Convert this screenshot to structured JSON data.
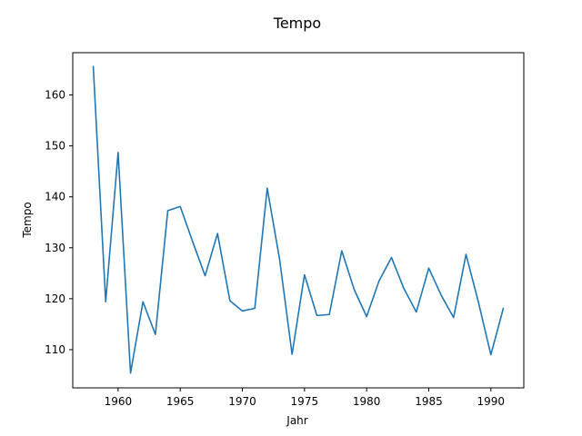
{
  "chart_data": {
    "type": "line",
    "title": "Tempo",
    "xlabel": "Jahr",
    "ylabel": "Tempo",
    "xlim": [
      1956.35,
      1992.65
    ],
    "ylim": [
      102.5,
      168.3
    ],
    "xticks": [
      1960,
      1965,
      1970,
      1975,
      1980,
      1985,
      1990
    ],
    "yticks": [
      110,
      120,
      130,
      140,
      150,
      160
    ],
    "grid": false,
    "series": [
      {
        "color": "#1f77b4",
        "x": [
          1958,
          1959,
          1960,
          1961,
          1962,
          1963,
          1964,
          1965,
          1966,
          1967,
          1968,
          1969,
          1970,
          1971,
          1972,
          1973,
          1974,
          1975,
          1976,
          1977,
          1978,
          1979,
          1980,
          1981,
          1982,
          1983,
          1984,
          1985,
          1986,
          1987,
          1988,
          1989,
          1990,
          1991
        ],
        "y": [
          165.6,
          119.4,
          148.7,
          105.4,
          119.4,
          113.0,
          137.3,
          138.1,
          131.2,
          124.5,
          132.8,
          119.6,
          117.6,
          118.1,
          141.7,
          127.7,
          109.1,
          124.7,
          116.7,
          116.9,
          129.4,
          121.8,
          116.5,
          123.5,
          128.1,
          122.0,
          117.4,
          126.0,
          120.7,
          116.3,
          128.7,
          119.3,
          109.0,
          118.1
        ]
      }
    ]
  }
}
